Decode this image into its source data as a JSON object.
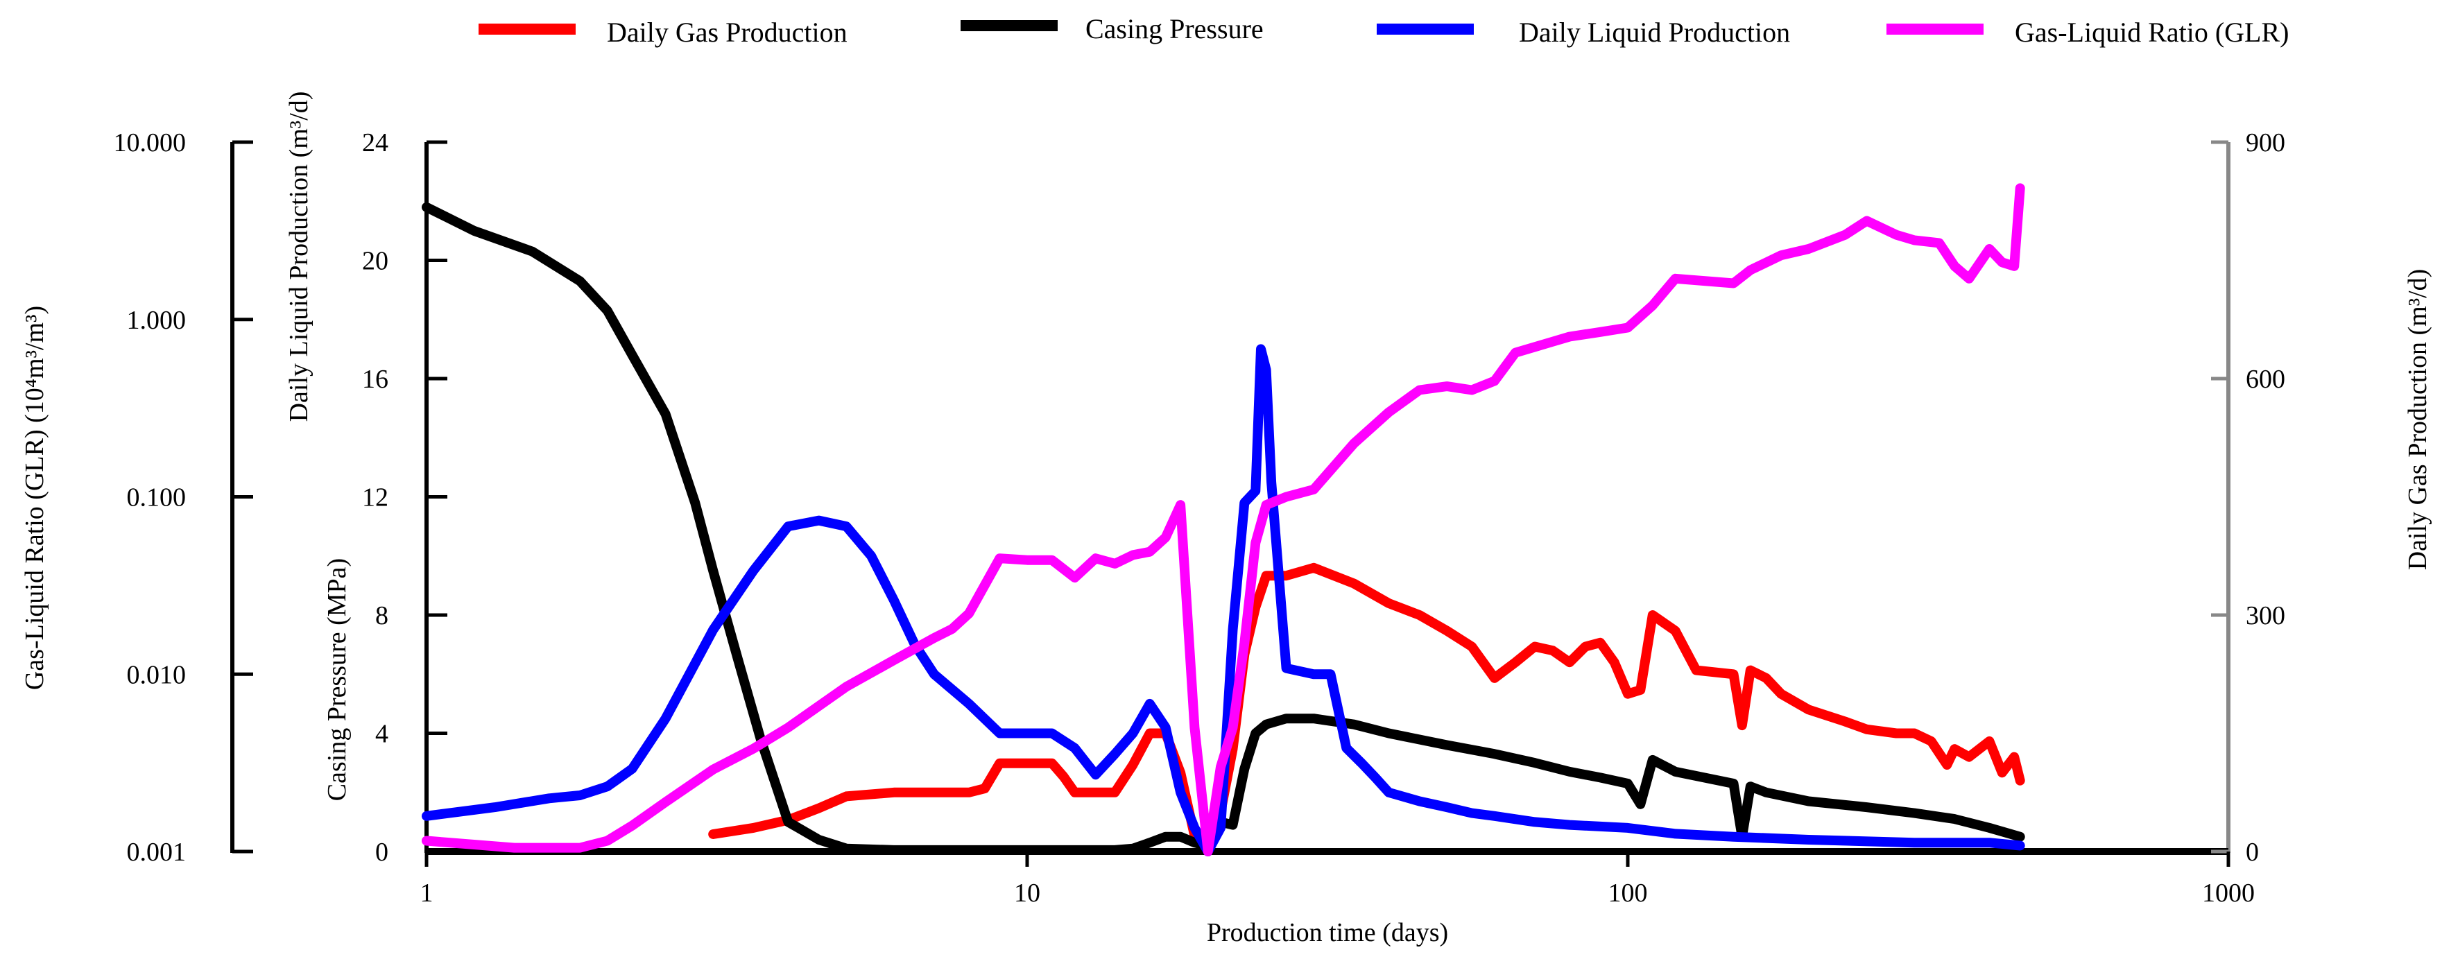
{
  "chart_data": {
    "type": "line",
    "xlabel": "Production time (days)",
    "x_scale": "log",
    "xlim": [
      1,
      1000
    ],
    "x_ticks": [
      "1",
      "10",
      "100",
      "1000"
    ],
    "axes": {
      "glr": {
        "label": "Gas-Liquid Ratio (GLR) (10⁴m³/m³)",
        "scale": "log",
        "range": [
          0.001,
          10
        ],
        "ticks": [
          "0.001",
          "0.010",
          "0.100",
          "1.000",
          "10.000"
        ]
      },
      "casing": {
        "label": "Casing Pressure (MPa)",
        "range": [
          0,
          24
        ],
        "ticks": [
          "0",
          "4",
          "8",
          "12",
          "16",
          "20",
          "24"
        ]
      },
      "liquid": {
        "label": "Daily Liquid Production (m³/d)",
        "range": [
          0,
          24
        ]
      },
      "gas": {
        "label": "Daily Gas Production (m³/d)",
        "range": [
          0,
          900
        ],
        "ticks": [
          "0",
          "300",
          "600",
          "900"
        ]
      }
    },
    "legend_position": "top",
    "grid": false,
    "series": [
      {
        "name": "Daily Gas Production",
        "axis": "gas",
        "color": "#ff0000",
        "x": [
          3,
          3.5,
          4,
          4.5,
          5,
          6,
          7,
          8,
          8.5,
          9,
          10,
          11,
          11.5,
          12,
          13,
          14,
          15,
          16,
          17,
          18,
          19,
          20,
          21,
          22,
          23,
          24,
          25,
          27,
          30,
          35,
          40,
          45,
          50,
          55,
          60,
          65,
          70,
          75,
          80,
          85,
          90,
          95,
          100,
          105,
          110,
          120,
          130,
          150,
          155,
          160,
          170,
          180,
          200,
          230,
          250,
          280,
          300,
          320,
          340,
          350,
          370,
          400,
          420,
          440,
          450
        ],
        "y": [
          22,
          30,
          40,
          55,
          70,
          75,
          75,
          75,
          80,
          112,
          112,
          112,
          95,
          75,
          75,
          75,
          110,
          150,
          150,
          100,
          20,
          10,
          50,
          130,
          250,
          310,
          350,
          350,
          360,
          340,
          315,
          300,
          280,
          260,
          220,
          240,
          260,
          255,
          240,
          260,
          265,
          240,
          200,
          205,
          300,
          280,
          230,
          225,
          160,
          230,
          220,
          200,
          180,
          165,
          155,
          150,
          150,
          140,
          110,
          130,
          120,
          140,
          100,
          120,
          90
        ]
      },
      {
        "name": "Casing Pressure",
        "axis": "casing",
        "color": "#000000",
        "x": [
          1,
          1.2,
          1.5,
          1.8,
          2,
          2.2,
          2.5,
          2.8,
          3,
          3.3,
          3.6,
          4,
          4.5,
          5,
          6,
          8,
          10,
          12,
          14,
          15,
          16,
          17,
          18,
          19,
          20,
          21,
          22,
          23,
          24,
          25,
          27,
          30,
          35,
          40,
          50,
          60,
          70,
          80,
          90,
          100,
          105,
          110,
          120,
          150,
          155,
          160,
          170,
          200,
          250,
          300,
          350,
          400,
          450
        ],
        "y": [
          21.8,
          21,
          20.3,
          19.3,
          18.3,
          16.8,
          14.8,
          11.8,
          9.5,
          6.5,
          3.8,
          1.0,
          0.4,
          0.1,
          0.05,
          0.05,
          0.05,
          0.05,
          0.05,
          0.1,
          0.3,
          0.5,
          0.5,
          0.3,
          0.2,
          1.0,
          0.9,
          2.8,
          4.0,
          4.3,
          4.5,
          4.5,
          4.3,
          4.0,
          3.6,
          3.3,
          3.0,
          2.7,
          2.5,
          2.3,
          1.6,
          3.1,
          2.7,
          2.3,
          0.5,
          2.2,
          2.0,
          1.7,
          1.5,
          1.3,
          1.1,
          0.8,
          0.5
        ]
      },
      {
        "name": "Daily Liquid Production",
        "axis": "liquid",
        "color": "#0000ff",
        "x": [
          1,
          1.3,
          1.6,
          1.8,
          2,
          2.2,
          2.5,
          3,
          3.5,
          4,
          4.5,
          5,
          5.5,
          6,
          6.5,
          7,
          8,
          9,
          10,
          11,
          12,
          13,
          14,
          15,
          16,
          17,
          18,
          19,
          20,
          21,
          22,
          23,
          24,
          24.5,
          25,
          25.5,
          27,
          30,
          32,
          34,
          36,
          38,
          40,
          45,
          50,
          55,
          60,
          70,
          80,
          100,
          120,
          150,
          200,
          300,
          400,
          450
        ],
        "y": [
          1.2,
          1.5,
          1.8,
          1.9,
          2.2,
          2.8,
          4.5,
          7.5,
          9.5,
          11.0,
          11.2,
          11.0,
          10.0,
          8.5,
          7.0,
          6.0,
          5.0,
          4.0,
          4.0,
          4.0,
          3.5,
          2.6,
          3.3,
          4.0,
          5.0,
          4.2,
          2.0,
          0.8,
          0.0,
          0.8,
          7.5,
          11.8,
          12.2,
          17.0,
          16.3,
          12.5,
          6.2,
          6.0,
          6.0,
          3.5,
          3.0,
          2.5,
          2.0,
          1.7,
          1.5,
          1.3,
          1.2,
          1.0,
          0.9,
          0.8,
          0.6,
          0.5,
          0.4,
          0.3,
          0.3,
          0.2
        ]
      },
      {
        "name": "Gas-Liquid Ratio (GLR)",
        "axis": "glr",
        "color": "#ff00ff",
        "x": [
          1,
          1.4,
          1.8,
          2,
          2.2,
          2.5,
          3,
          3.5,
          4,
          5,
          6,
          7,
          7.5,
          8,
          9,
          10,
          11,
          12,
          13,
          14,
          15,
          16,
          17,
          18,
          19,
          20,
          21,
          22,
          23,
          24,
          25,
          27,
          30,
          35,
          40,
          45,
          50,
          55,
          60,
          65,
          70,
          75,
          80,
          90,
          100,
          110,
          120,
          150,
          160,
          180,
          200,
          230,
          250,
          280,
          300,
          330,
          350,
          370,
          400,
          420,
          440,
          450
        ],
        "y": [
          0.00115,
          0.00105,
          0.00105,
          0.00115,
          0.0014,
          0.0019,
          0.0029,
          0.0038,
          0.005,
          0.0085,
          0.012,
          0.016,
          0.018,
          0.022,
          0.045,
          0.044,
          0.044,
          0.035,
          0.045,
          0.042,
          0.047,
          0.049,
          0.059,
          0.09,
          0.005,
          0.001,
          0.003,
          0.005,
          0.015,
          0.055,
          0.09,
          0.1,
          0.11,
          0.2,
          0.3,
          0.4,
          0.42,
          0.4,
          0.45,
          0.65,
          0.7,
          0.75,
          0.8,
          0.85,
          0.9,
          1.2,
          1.7,
          1.6,
          1.9,
          2.3,
          2.5,
          3.0,
          3.6,
          3.0,
          2.8,
          2.7,
          2.0,
          1.7,
          2.5,
          2.1,
          2.0,
          5.5
        ]
      }
    ]
  }
}
